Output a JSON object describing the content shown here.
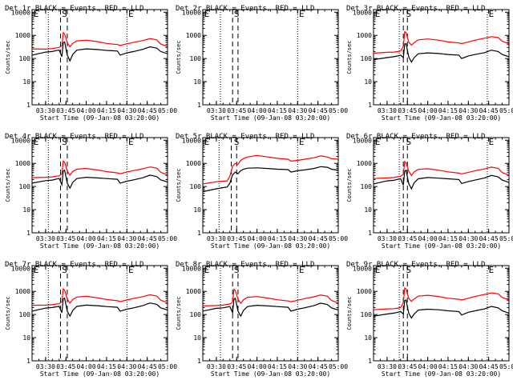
{
  "colors": {
    "events": "#000000",
    "lld": "#ff0000",
    "axis": "#000000",
    "background": "#ffffff"
  },
  "common": {
    "ylabel": "Counts/sec",
    "xlabel": "Start Time (09-Jan-08 03:20:00)",
    "x_tick_labels": [
      "03:30",
      "03:45",
      "04:00",
      "04:15",
      "04:30",
      "04:45",
      "05:00"
    ],
    "y_tick_labels": [
      "1",
      "10",
      "100",
      "1000",
      "10000"
    ],
    "markers": {
      "start": "E",
      "flare": "S",
      "end": "E"
    }
  },
  "chart_data": [
    {
      "type": "line",
      "title": "Det 1r BLACK = Events, RED = LLD",
      "xlim": [
        "03:20",
        "05:00"
      ],
      "ylim": [
        1,
        13000
      ],
      "y_scale": "log",
      "events_x": [
        "03:20",
        "03:30",
        "03:35",
        "03:38",
        "03:40",
        "03:42",
        "03:43",
        "03:44",
        "03:46",
        "03:48",
        "03:50",
        "03:53",
        "04:00",
        "04:08",
        "04:15",
        "04:23",
        "04:25",
        "04:30",
        "04:35",
        "04:42",
        "04:47",
        "04:52",
        "04:55",
        "05:00"
      ],
      "events_y": [
        140,
        190,
        200,
        220,
        230,
        120,
        480,
        520,
        140,
        80,
        150,
        230,
        260,
        245,
        225,
        210,
        140,
        175,
        200,
        250,
        320,
        280,
        200,
        160
      ],
      "lld_x": [
        "03:20",
        "03:30",
        "03:35",
        "03:38",
        "03:40",
        "03:42",
        "03:43",
        "03:44",
        "03:46",
        "03:48",
        "03:50",
        "03:53",
        "04:00",
        "04:08",
        "04:15",
        "04:23",
        "04:25",
        "04:30",
        "04:35",
        "04:42",
        "04:47",
        "04:52",
        "04:55",
        "05:00"
      ],
      "lld_y": [
        260,
        255,
        270,
        290,
        300,
        360,
        1300,
        1150,
        480,
        320,
        450,
        580,
        620,
        540,
        450,
        400,
        370,
        430,
        500,
        600,
        720,
        640,
        420,
        330
      ],
      "vlines_dotted": [
        "03:32",
        "04:30"
      ],
      "vlines_dashed": [
        "03:41",
        "03:46"
      ],
      "marker_x": {
        "start": "03:21",
        "flare": "03:42",
        "end": "04:31"
      }
    },
    {
      "type": "line",
      "title": "Det 2r BLACK = Events, RED = LLD",
      "xlim": [
        "03:20",
        "05:00"
      ],
      "ylim": [
        1,
        13000
      ],
      "y_scale": "log",
      "events_x": [],
      "events_y": [],
      "lld_x": [],
      "lld_y": [],
      "vlines_dotted": [
        "03:33",
        "04:30"
      ],
      "vlines_dashed": [
        "03:42",
        "03:46"
      ],
      "marker_x": {
        "start": "03:21",
        "flare": "03:43",
        "end": "04:31"
      }
    },
    {
      "type": "line",
      "title": "Det 3r BLACK = Events, RED = LLD",
      "xlim": [
        "03:20",
        "05:00"
      ],
      "ylim": [
        1,
        13000
      ],
      "y_scale": "log",
      "events_x": [
        "03:20",
        "03:30",
        "03:35",
        "03:38",
        "03:40",
        "03:42",
        "03:43",
        "03:44",
        "03:46",
        "03:48",
        "03:50",
        "03:53",
        "04:00",
        "04:08",
        "04:15",
        "04:23",
        "04:25",
        "04:30",
        "04:35",
        "04:42",
        "04:47",
        "04:52",
        "04:55",
        "05:00"
      ],
      "events_y": [
        90,
        110,
        120,
        130,
        140,
        110,
        420,
        440,
        120,
        70,
        110,
        160,
        175,
        165,
        150,
        140,
        100,
        130,
        150,
        180,
        230,
        200,
        150,
        120
      ],
      "lld_x": [
        "03:20",
        "03:30",
        "03:35",
        "03:38",
        "03:40",
        "03:42",
        "03:43",
        "03:44",
        "03:46",
        "03:48",
        "03:50",
        "03:53",
        "04:00",
        "04:08",
        "04:15",
        "04:23",
        "04:25",
        "04:30",
        "04:35",
        "04:42",
        "04:47",
        "04:52",
        "04:55",
        "05:00"
      ],
      "lld_y": [
        170,
        185,
        190,
        200,
        210,
        330,
        1450,
        1300,
        520,
        380,
        480,
        640,
        700,
        620,
        520,
        470,
        440,
        520,
        620,
        760,
        880,
        800,
        560,
        430
      ],
      "vlines_dotted": [
        "03:39",
        "04:44"
      ],
      "vlines_dashed": [
        "03:42",
        "03:45"
      ],
      "marker_x": {
        "start": "03:21",
        "flare": "03:44",
        "end": "04:45"
      }
    },
    {
      "type": "line",
      "title": "Det 4r BLACK = Events, RED = LLD",
      "xlim": [
        "03:20",
        "05:00"
      ],
      "ylim": [
        1,
        13000
      ],
      "y_scale": "log",
      "events_x": [
        "03:20",
        "03:30",
        "03:35",
        "03:38",
        "03:40",
        "03:42",
        "03:43",
        "03:44",
        "03:46",
        "03:48",
        "03:50",
        "03:53",
        "04:00",
        "04:08",
        "04:15",
        "04:23",
        "04:25",
        "04:30",
        "04:35",
        "04:42",
        "04:47",
        "04:52",
        "04:55",
        "05:00"
      ],
      "events_y": [
        140,
        180,
        190,
        210,
        220,
        120,
        470,
        510,
        140,
        85,
        150,
        220,
        250,
        235,
        220,
        205,
        140,
        170,
        195,
        240,
        310,
        270,
        195,
        155
      ],
      "lld_x": [
        "03:20",
        "03:30",
        "03:35",
        "03:38",
        "03:40",
        "03:42",
        "03:43",
        "03:44",
        "03:46",
        "03:48",
        "03:50",
        "03:53",
        "04:00",
        "04:08",
        "04:15",
        "04:23",
        "04:25",
        "04:30",
        "04:35",
        "04:42",
        "04:47",
        "04:52",
        "04:55",
        "05:00"
      ],
      "lld_y": [
        240,
        250,
        260,
        280,
        290,
        350,
        1250,
        1100,
        470,
        310,
        440,
        560,
        600,
        520,
        440,
        390,
        360,
        420,
        490,
        590,
        700,
        620,
        410,
        320
      ],
      "vlines_dotted": [
        "03:32",
        "04:30"
      ],
      "vlines_dashed": [
        "03:41",
        "03:46"
      ],
      "marker_x": {
        "start": "03:21",
        "flare": "03:42",
        "end": "04:31"
      }
    },
    {
      "type": "line",
      "title": "Det 5r BLACK = Events, RED = LLD",
      "xlim": [
        "03:20",
        "05:00"
      ],
      "ylim": [
        1,
        13000
      ],
      "y_scale": "log",
      "events_x": [
        "03:20",
        "03:30",
        "03:35",
        "03:38",
        "03:40",
        "03:42",
        "03:44",
        "03:46",
        "03:48",
        "03:50",
        "03:53",
        "04:00",
        "04:08",
        "04:15",
        "04:23",
        "04:25",
        "04:30",
        "04:35",
        "04:42",
        "04:47",
        "04:52",
        "04:55",
        "05:00"
      ],
      "events_y": [
        60,
        80,
        90,
        95,
        140,
        320,
        420,
        360,
        480,
        560,
        620,
        640,
        600,
        560,
        540,
        420,
        480,
        520,
        600,
        720,
        680,
        560,
        500
      ],
      "lld_x": [
        "03:20",
        "03:30",
        "03:35",
        "03:38",
        "03:40",
        "03:42",
        "03:44",
        "03:46",
        "03:48",
        "03:50",
        "03:53",
        "04:00",
        "04:08",
        "04:15",
        "04:23",
        "04:25",
        "04:30",
        "04:35",
        "04:42",
        "04:47",
        "04:52",
        "04:55",
        "05:00"
      ],
      "lld_y": [
        130,
        160,
        170,
        175,
        280,
        750,
        1000,
        900,
        1350,
        1600,
        1900,
        2200,
        1900,
        1650,
        1500,
        1250,
        1350,
        1500,
        1750,
        2100,
        1900,
        1600,
        1500
      ],
      "vlines_dotted": [
        "03:32",
        "04:30"
      ],
      "vlines_dashed": [
        "03:41",
        "03:45"
      ],
      "marker_x": {
        "start": "03:21",
        "flare": "03:43",
        "end": "04:31"
      }
    },
    {
      "type": "line",
      "title": "Det 6r BLACK = Events, RED = LLD",
      "xlim": [
        "03:20",
        "05:00"
      ],
      "ylim": [
        1,
        13000
      ],
      "y_scale": "log",
      "events_x": [
        "03:20",
        "03:30",
        "03:35",
        "03:38",
        "03:40",
        "03:42",
        "03:43",
        "03:44",
        "03:46",
        "03:48",
        "03:50",
        "03:53",
        "04:00",
        "04:08",
        "04:15",
        "04:23",
        "04:25",
        "04:30",
        "04:35",
        "04:42",
        "04:47",
        "04:52",
        "04:55",
        "05:00"
      ],
      "events_y": [
        130,
        175,
        185,
        205,
        215,
        115,
        460,
        500,
        135,
        80,
        145,
        215,
        245,
        230,
        215,
        200,
        135,
        165,
        190,
        235,
        300,
        260,
        190,
        150
      ],
      "lld_x": [
        "03:20",
        "03:30",
        "03:35",
        "03:38",
        "03:40",
        "03:42",
        "03:43",
        "03:44",
        "03:46",
        "03:48",
        "03:50",
        "03:53",
        "04:00",
        "04:08",
        "04:15",
        "04:23",
        "04:25",
        "04:30",
        "04:35",
        "04:42",
        "04:47",
        "04:52",
        "04:55",
        "05:00"
      ],
      "lld_y": [
        220,
        235,
        245,
        265,
        275,
        340,
        1200,
        1050,
        460,
        300,
        430,
        550,
        590,
        510,
        430,
        380,
        350,
        410,
        480,
        580,
        690,
        610,
        400,
        310
      ],
      "vlines_dotted": [
        "03:39",
        "04:44"
      ],
      "vlines_dashed": [
        "03:42",
        "03:45"
      ],
      "marker_x": {
        "start": "03:21",
        "flare": "03:44",
        "end": "04:45"
      }
    },
    {
      "type": "line",
      "title": "Det 7r BLACK = Events, RED = LLD",
      "xlim": [
        "03:20",
        "05:00"
      ],
      "ylim": [
        1,
        13000
      ],
      "y_scale": "log",
      "events_x": [
        "03:20",
        "03:30",
        "03:35",
        "03:38",
        "03:40",
        "03:42",
        "03:43",
        "03:44",
        "03:46",
        "03:48",
        "03:50",
        "03:53",
        "04:00",
        "04:08",
        "04:15",
        "04:23",
        "04:25",
        "04:30",
        "04:35",
        "04:42",
        "04:47",
        "04:52",
        "04:55",
        "05:00"
      ],
      "events_y": [
        140,
        190,
        200,
        215,
        225,
        120,
        470,
        510,
        140,
        85,
        150,
        225,
        255,
        240,
        220,
        205,
        140,
        170,
        195,
        245,
        315,
        275,
        195,
        155
      ],
      "lld_x": [
        "03:20",
        "03:30",
        "03:35",
        "03:38",
        "03:40",
        "03:42",
        "03:43",
        "03:44",
        "03:46",
        "03:48",
        "03:50",
        "03:53",
        "04:00",
        "04:08",
        "04:15",
        "04:23",
        "04:25",
        "04:30",
        "04:35",
        "04:42",
        "04:47",
        "04:52",
        "04:55",
        "05:00"
      ],
      "lld_y": [
        250,
        255,
        265,
        285,
        295,
        355,
        1280,
        1120,
        470,
        310,
        440,
        570,
        610,
        530,
        445,
        395,
        365,
        425,
        495,
        595,
        710,
        630,
        415,
        325
      ],
      "vlines_dotted": [
        "03:32",
        "04:30"
      ],
      "vlines_dashed": [
        "03:41",
        "03:46"
      ],
      "marker_x": {
        "start": "03:21",
        "flare": "03:42",
        "end": "04:31"
      }
    },
    {
      "type": "line",
      "title": "Det 8r BLACK = Events, RED = LLD",
      "xlim": [
        "03:20",
        "05:00"
      ],
      "ylim": [
        1,
        13000
      ],
      "y_scale": "log",
      "events_x": [
        "03:20",
        "03:30",
        "03:35",
        "03:38",
        "03:40",
        "03:42",
        "03:43",
        "03:44",
        "03:46",
        "03:48",
        "03:50",
        "03:53",
        "04:00",
        "04:08",
        "04:15",
        "04:23",
        "04:25",
        "04:30",
        "04:35",
        "04:42",
        "04:47",
        "04:52",
        "04:55",
        "05:00"
      ],
      "events_y": [
        140,
        185,
        195,
        210,
        220,
        120,
        460,
        500,
        140,
        85,
        150,
        220,
        250,
        235,
        220,
        205,
        140,
        170,
        195,
        240,
        310,
        270,
        195,
        155
      ],
      "lld_x": [
        "03:20",
        "03:30",
        "03:35",
        "03:38",
        "03:40",
        "03:42",
        "03:43",
        "03:44",
        "03:46",
        "03:48",
        "03:50",
        "03:53",
        "04:00",
        "04:08",
        "04:15",
        "04:23",
        "04:25",
        "04:30",
        "04:35",
        "04:42",
        "04:47",
        "04:52",
        "04:55",
        "05:00"
      ],
      "lld_y": [
        235,
        245,
        255,
        275,
        285,
        345,
        1230,
        1080,
        460,
        305,
        435,
        555,
        595,
        515,
        435,
        385,
        355,
        415,
        485,
        585,
        695,
        615,
        405,
        315
      ],
      "vlines_dotted": [
        "03:33",
        "04:30"
      ],
      "vlines_dashed": [
        "03:42",
        "03:46"
      ],
      "marker_x": {
        "start": "03:21",
        "flare": "03:43",
        "end": "04:31"
      }
    },
    {
      "type": "line",
      "title": "Det 9r BLACK = Events, RED = LLD",
      "xlim": [
        "03:20",
        "05:00"
      ],
      "ylim": [
        1,
        13000
      ],
      "y_scale": "log",
      "events_x": [
        "03:20",
        "03:30",
        "03:35",
        "03:38",
        "03:40",
        "03:42",
        "03:43",
        "03:44",
        "03:46",
        "03:48",
        "03:50",
        "03:53",
        "04:00",
        "04:08",
        "04:15",
        "04:23",
        "04:25",
        "04:30",
        "04:35",
        "04:42",
        "04:47",
        "04:52",
        "04:55",
        "05:00"
      ],
      "events_y": [
        85,
        105,
        115,
        125,
        135,
        105,
        400,
        420,
        115,
        70,
        105,
        155,
        170,
        160,
        145,
        135,
        95,
        125,
        145,
        175,
        225,
        195,
        145,
        115
      ],
      "lld_x": [
        "03:20",
        "03:30",
        "03:35",
        "03:38",
        "03:40",
        "03:42",
        "03:43",
        "03:44",
        "03:46",
        "03:48",
        "03:50",
        "03:53",
        "04:00",
        "04:08",
        "04:15",
        "04:23",
        "04:25",
        "04:30",
        "04:35",
        "04:42",
        "04:47",
        "04:52",
        "04:55",
        "05:00"
      ],
      "lld_y": [
        160,
        175,
        180,
        190,
        200,
        320,
        1400,
        1250,
        500,
        370,
        470,
        620,
        680,
        600,
        505,
        455,
        425,
        505,
        600,
        740,
        860,
        780,
        545,
        420
      ],
      "vlines_dotted": [
        "03:39",
        "04:44"
      ],
      "vlines_dashed": [
        "03:42",
        "03:45"
      ],
      "marker_x": {
        "start": "03:21",
        "flare": "03:44",
        "end": "04:45"
      }
    }
  ]
}
